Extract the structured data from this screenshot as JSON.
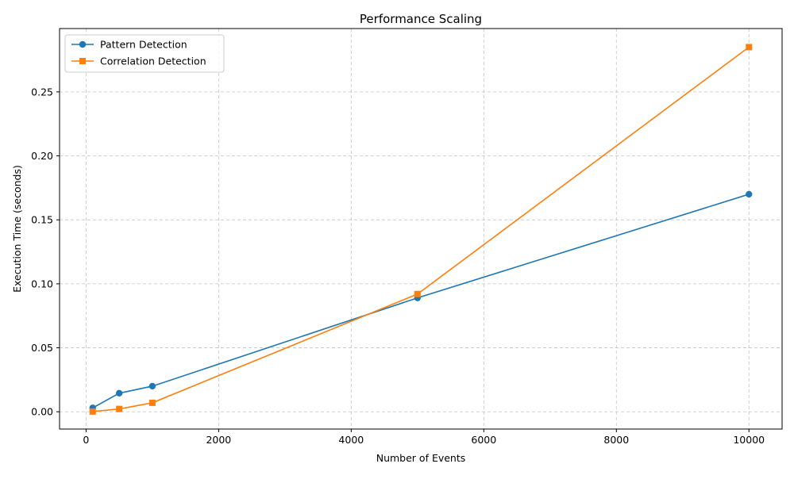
{
  "chart_data": {
    "type": "line",
    "title": "Performance Scaling",
    "xlabel": "Number of Events",
    "ylabel": "Execution Time (seconds)",
    "xlim": [
      -400,
      10500
    ],
    "ylim": [
      -0.0135,
      0.2995
    ],
    "xticks": [
      0,
      2000,
      4000,
      6000,
      8000,
      10000
    ],
    "xtick_labels": [
      "0",
      "2000",
      "4000",
      "6000",
      "8000",
      "10000"
    ],
    "yticks": [
      0.0,
      0.05,
      0.1,
      0.15,
      0.2,
      0.25
    ],
    "ytick_labels": [
      "0.00",
      "0.05",
      "0.10",
      "0.15",
      "0.20",
      "0.25"
    ],
    "grid": true,
    "legend_position": "top-left",
    "x": [
      100,
      500,
      1000,
      5000,
      10000
    ],
    "series": [
      {
        "name": "Pattern Detection",
        "values": [
          0.003,
          0.0145,
          0.02,
          0.089,
          0.17
        ],
        "color": "#1f77b4",
        "marker": "circle"
      },
      {
        "name": "Correlation Detection",
        "values": [
          0.0002,
          0.0022,
          0.007,
          0.092,
          0.285
        ],
        "color": "#ff7f0e",
        "marker": "square"
      }
    ]
  }
}
